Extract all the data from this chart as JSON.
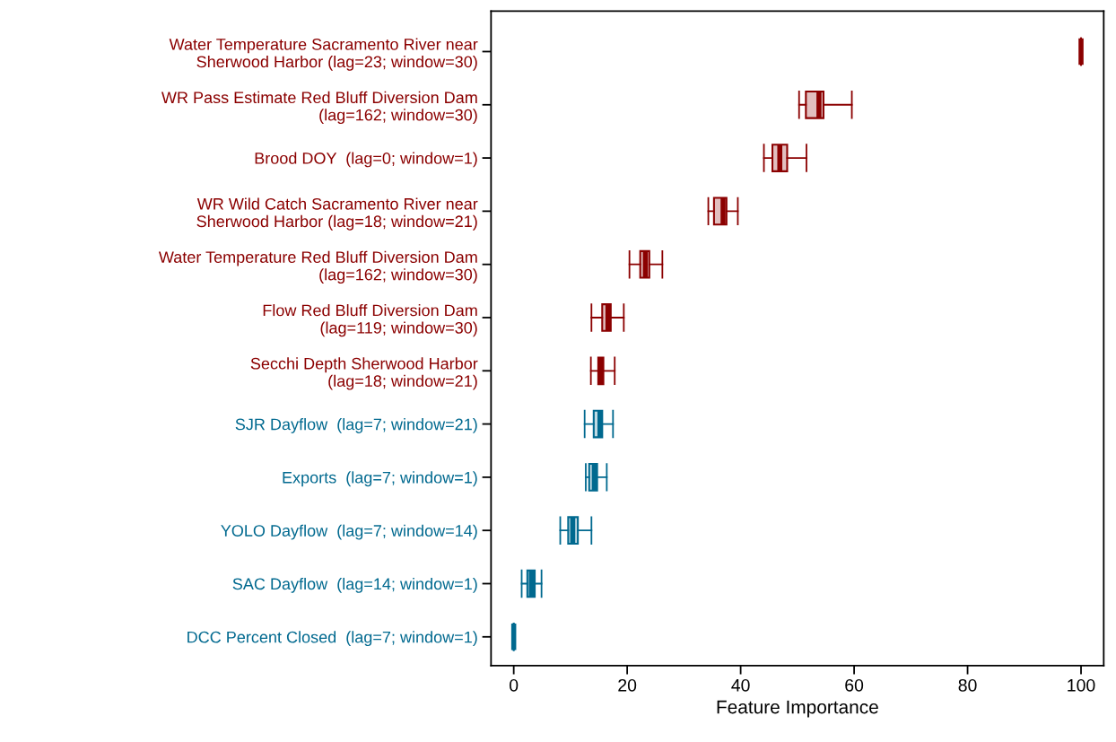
{
  "chart_data": {
    "type": "box",
    "orientation": "horizontal",
    "xlabel": "Feature Importance",
    "categories": [
      "Water Temperature Sacramento River near\nSherwood Harbor (lag=23; window=30)",
      "WR Pass Estimate Red Bluff Diversion Dam\n(lag=162; window=30)",
      "Brood DOY  (lag=0; window=1)",
      "WR Wild Catch Sacramento River near\nSherwood Harbor (lag=18; window=21)",
      "Water Temperature Red Bluff Diversion Dam\n(lag=162; window=30)",
      "Flow Red Bluff Diversion Dam\n(lag=119; window=30)",
      "Secchi Depth Sherwood Harbor\n(lag=18; window=21)",
      "SJR Dayflow  (lag=7; window=21)",
      "Exports  (lag=7; window=1)",
      "YOLO Dayflow  (lag=7; window=14)",
      "SAC Dayflow  (lag=14; window=1)",
      "DCC Percent Closed  (lag=7; window=1)"
    ],
    "series": [
      {
        "color": "#8b0000",
        "boxes": [
          {
            "low": 100,
            "q1": 100,
            "median": 100,
            "q3": 100,
            "high": 100
          },
          {
            "low": 50.3,
            "q1": 51.5,
            "median": 53.8,
            "q3": 54.6,
            "high": 59.6
          },
          {
            "low": 44.1,
            "q1": 45.6,
            "median": 46.9,
            "q3": 48.2,
            "high": 51.6
          },
          {
            "low": 34.3,
            "q1": 35.3,
            "median": 36.9,
            "q3": 37.5,
            "high": 39.5
          },
          {
            "low": 20.4,
            "q1": 22.3,
            "median": 23.2,
            "q3": 23.9,
            "high": 26.2
          },
          {
            "low": 13.7,
            "q1": 15.6,
            "median": 16.6,
            "q3": 17.1,
            "high": 19.4
          },
          {
            "low": 13.6,
            "q1": 14.9,
            "median": 15.3,
            "q3": 15.8,
            "high": 17.8
          },
          null,
          null,
          null,
          null,
          null
        ]
      },
      {
        "color": "#00698f",
        "boxes": [
          null,
          null,
          null,
          null,
          null,
          null,
          null,
          {
            "low": 12.5,
            "q1": 14.1,
            "median": 15.2,
            "q3": 15.6,
            "high": 17.5
          },
          {
            "low": 12.7,
            "q1": 13.3,
            "median": 14.2,
            "q3": 14.7,
            "high": 16.4
          },
          {
            "low": 8.2,
            "q1": 9.6,
            "median": 10.4,
            "q3": 11.3,
            "high": 13.7
          },
          {
            "low": 1.4,
            "q1": 2.4,
            "median": 3.1,
            "q3": 3.7,
            "high": 4.9
          },
          {
            "low": 0,
            "q1": 0,
            "median": 0,
            "q3": 0,
            "high": 0
          }
        ]
      }
    ],
    "xlim": [
      -4,
      104
    ],
    "xticks": [
      0,
      20,
      40,
      60,
      80,
      100
    ],
    "grid": false
  }
}
